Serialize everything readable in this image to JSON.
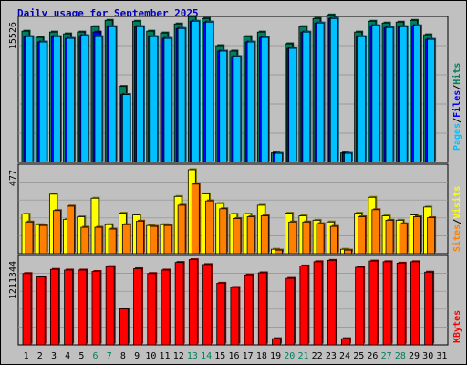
{
  "title": "Daily usage for September 2025",
  "colors": {
    "background": "#c0c0c0",
    "plot_bg": "#c0c0c0",
    "hits": "#00805c",
    "files": "#0000ff",
    "pages": "#00c0ff",
    "visits": "#ffff00",
    "sites": "#ff8000",
    "kbytes": "#ff0000",
    "weekend_day": "#00805c",
    "weekday": "#000000",
    "title": "#0000c0"
  },
  "chart_data": [
    {
      "type": "bar",
      "name": "hits-files-pages",
      "axis_max_label": "15526",
      "ylim": [
        0,
        15526
      ],
      "legend": [
        "Pages",
        "/",
        "Files",
        "/",
        "Hits"
      ],
      "categories": [
        "1",
        "2",
        "3",
        "4",
        "5",
        "6",
        "7",
        "8",
        "9",
        "10",
        "11",
        "12",
        "13",
        "14",
        "15",
        "16",
        "17",
        "18",
        "19",
        "20",
        "21",
        "22",
        "23",
        "24",
        "25",
        "26",
        "27",
        "28",
        "29",
        "30",
        "31"
      ],
      "series": [
        {
          "name": "Hits",
          "values": [
            14500,
            13800,
            14400,
            14200,
            14400,
            15000,
            15700,
            8400,
            15600,
            14500,
            14300,
            15300,
            16100,
            15900,
            12900,
            12300,
            13900,
            14400,
            1050,
            13100,
            15000,
            15900,
            16300,
            1050,
            14400,
            15600,
            15400,
            15500,
            15700,
            14100,
            0
          ]
        },
        {
          "name": "Files",
          "values": [
            13900,
            13300,
            13900,
            13700,
            14000,
            14400,
            15000,
            7500,
            15000,
            13900,
            13700,
            14800,
            15600,
            15500,
            12300,
            11700,
            13300,
            13800,
            1000,
            12600,
            14400,
            15400,
            15900,
            1000,
            13900,
            15100,
            14900,
            15000,
            15100,
            13600,
            0
          ]
        },
        {
          "name": "Pages",
          "values": [
            13900,
            13300,
            13900,
            13700,
            14000,
            13900,
            15000,
            7500,
            15000,
            13900,
            13700,
            14800,
            15600,
            15500,
            12300,
            11700,
            13300,
            13800,
            1000,
            12600,
            14400,
            15400,
            15900,
            1000,
            13900,
            15100,
            14900,
            15000,
            15100,
            13600,
            0
          ]
        }
      ]
    },
    {
      "type": "bar",
      "name": "visits-sites",
      "axis_max_label": "477",
      "ylim": [
        0,
        477
      ],
      "legend": [
        "Sites",
        "/",
        "Visits"
      ],
      "categories": [
        "1",
        "2",
        "3",
        "4",
        "5",
        "6",
        "7",
        "8",
        "9",
        "10",
        "11",
        "12",
        "13",
        "14",
        "15",
        "16",
        "17",
        "18",
        "19",
        "20",
        "21",
        "22",
        "23",
        "24",
        "25",
        "26",
        "27",
        "28",
        "29",
        "30",
        "31"
      ],
      "series": [
        {
          "name": "Visits",
          "values": [
            225,
            165,
            338,
            195,
            210,
            315,
            165,
            230,
            220,
            160,
            165,
            325,
            477,
            340,
            285,
            225,
            225,
            275,
            25,
            230,
            215,
            190,
            180,
            25,
            230,
            320,
            215,
            190,
            220,
            265,
            0
          ]
        },
        {
          "name": "Sites",
          "values": [
            180,
            160,
            245,
            270,
            150,
            150,
            140,
            165,
            185,
            155,
            160,
            275,
            395,
            300,
            255,
            200,
            210,
            215,
            20,
            180,
            180,
            170,
            155,
            20,
            210,
            250,
            190,
            170,
            210,
            205,
            0
          ]
        }
      ]
    },
    {
      "type": "bar",
      "name": "kbytes",
      "axis_max_label": "1211344",
      "ylim": [
        0,
        1211344
      ],
      "legend": [
        "KBytes"
      ],
      "categories": [
        "1",
        "2",
        "3",
        "4",
        "5",
        "6",
        "7",
        "8",
        "9",
        "10",
        "11",
        "12",
        "13",
        "14",
        "15",
        "16",
        "17",
        "18",
        "19",
        "20",
        "21",
        "22",
        "23",
        "24",
        "25",
        "26",
        "27",
        "28",
        "29",
        "30",
        "31"
      ],
      "series": [
        {
          "name": "KBytes",
          "values": [
            1030000,
            980000,
            1090000,
            1080000,
            1080000,
            1060000,
            1130000,
            520000,
            1100000,
            1030000,
            1080000,
            1190000,
            1230000,
            1160000,
            890000,
            830000,
            1010000,
            1040000,
            90000,
            960000,
            1140000,
            1200000,
            1220000,
            90000,
            1120000,
            1210000,
            1200000,
            1180000,
            1200000,
            1050000,
            0
          ]
        }
      ]
    }
  ],
  "x_labels": [
    {
      "text": "1",
      "weekend": false
    },
    {
      "text": "2",
      "weekend": false
    },
    {
      "text": "3",
      "weekend": false
    },
    {
      "text": "4",
      "weekend": false
    },
    {
      "text": "5",
      "weekend": false
    },
    {
      "text": "6",
      "weekend": true
    },
    {
      "text": "7",
      "weekend": true
    },
    {
      "text": "8",
      "weekend": false
    },
    {
      "text": "9",
      "weekend": false
    },
    {
      "text": "10",
      "weekend": false
    },
    {
      "text": "11",
      "weekend": false
    },
    {
      "text": "12",
      "weekend": false
    },
    {
      "text": "13",
      "weekend": true
    },
    {
      "text": "14",
      "weekend": true
    },
    {
      "text": "15",
      "weekend": false
    },
    {
      "text": "16",
      "weekend": false
    },
    {
      "text": "17",
      "weekend": false
    },
    {
      "text": "18",
      "weekend": false
    },
    {
      "text": "19",
      "weekend": false
    },
    {
      "text": "20",
      "weekend": true
    },
    {
      "text": "21",
      "weekend": true
    },
    {
      "text": "22",
      "weekend": false
    },
    {
      "text": "23",
      "weekend": false
    },
    {
      "text": "24",
      "weekend": false
    },
    {
      "text": "25",
      "weekend": false
    },
    {
      "text": "26",
      "weekend": false
    },
    {
      "text": "27",
      "weekend": true
    },
    {
      "text": "28",
      "weekend": true
    },
    {
      "text": "29",
      "weekend": false
    },
    {
      "text": "30",
      "weekend": false
    },
    {
      "text": "31",
      "weekend": false
    }
  ]
}
